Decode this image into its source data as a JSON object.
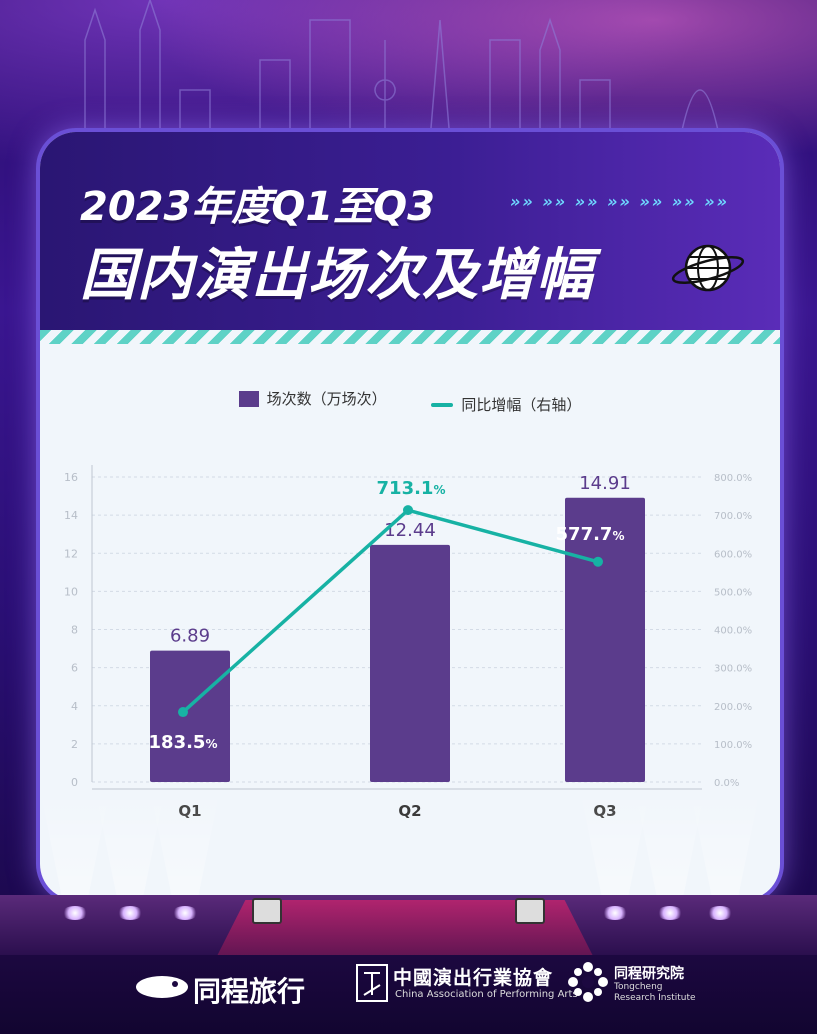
{
  "header": {
    "title_line1": "2023年度Q1至Q3",
    "title_line2": "国内演出场次及增幅",
    "arrows": "»» »» »» »» »» »» »»"
  },
  "legend": {
    "bar_label": "场次数（万场次）",
    "line_label": "同比增幅（右轴）"
  },
  "colors": {
    "bar": "#5b3c8c",
    "line": "#17b2a4",
    "bar_label": "#5b3c8c",
    "line_label": "#17b2a4"
  },
  "chart_data": {
    "type": "bar",
    "categories": [
      "Q1",
      "Q2",
      "Q3"
    ],
    "series": [
      {
        "name": "场次数（万场次）",
        "type": "bar",
        "axis": "left",
        "values": [
          6.89,
          12.44,
          14.91
        ],
        "labels": [
          "6.89",
          "12.44",
          "14.91"
        ]
      },
      {
        "name": "同比增幅（右轴）",
        "type": "line",
        "axis": "right",
        "values": [
          183.5,
          713.1,
          577.7
        ],
        "labels": [
          "183.5",
          "713.1",
          "577.7"
        ],
        "label_suffix": "%"
      }
    ],
    "y_left": {
      "min": 0,
      "max": 16,
      "ticks": [
        "0",
        "2",
        "4",
        "6",
        "8",
        "10",
        "12",
        "14",
        "16"
      ]
    },
    "y_right": {
      "min": 0,
      "max": 800,
      "ticks": [
        "0.0%",
        "100.0%",
        "200.0%",
        "300.0%",
        "400.0%",
        "500.0%",
        "600.0%",
        "700.0%",
        "800.0%"
      ]
    },
    "grid": true,
    "legend_position": "top-center"
  },
  "footer": {
    "brand1": "同程旅行",
    "brand2": "中國演出行業協會",
    "brand2_en": "China Association of Performing Arts",
    "brand3": "同程研究院",
    "brand3_en1": "Tongcheng",
    "brand3_en2": "Research Institute"
  }
}
